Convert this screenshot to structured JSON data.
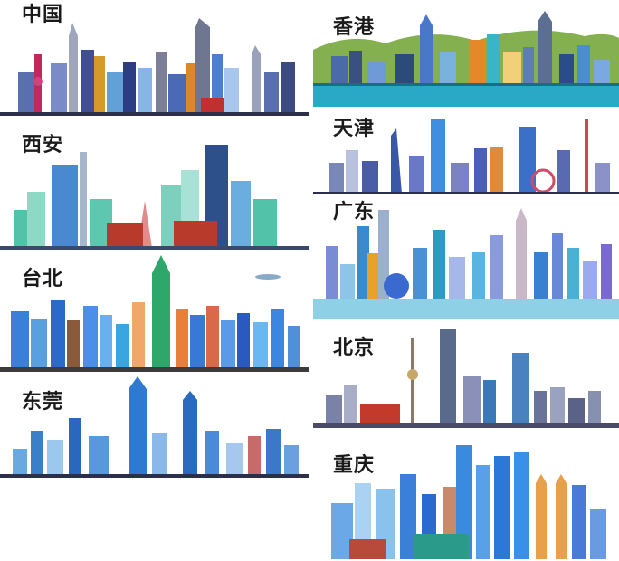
{
  "cities": [
    {
      "id": "china",
      "label": "中国"
    },
    {
      "id": "hongkong",
      "label": "香港"
    },
    {
      "id": "xian",
      "label": "西安"
    },
    {
      "id": "tianjin",
      "label": "天津"
    },
    {
      "id": "guangdong",
      "label": "广东"
    },
    {
      "id": "taipei",
      "label": "台北"
    },
    {
      "id": "beijing",
      "label": "北京"
    },
    {
      "id": "dongguan",
      "label": "东莞"
    },
    {
      "id": "chongqing",
      "label": "重庆"
    }
  ]
}
